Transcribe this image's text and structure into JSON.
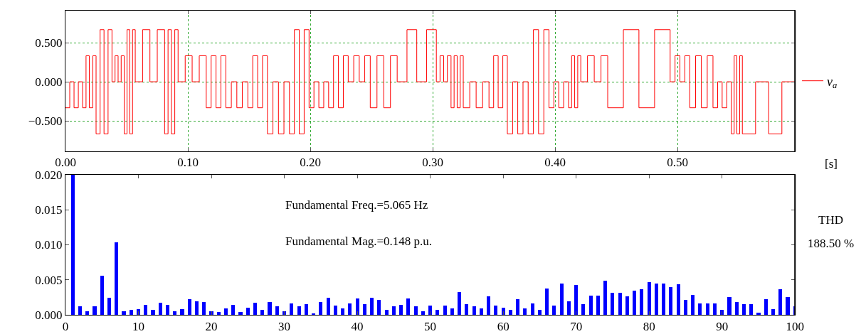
{
  "chart_data": [
    {
      "type": "step",
      "xlabel": "[s]",
      "legend": "right",
      "grid": true,
      "line_style": "solid",
      "xlim": [
        0,
        0.596
      ],
      "ylim": [
        -0.89,
        0.91
      ],
      "xticks": [
        {
          "value": 0,
          "label": "0.00"
        },
        {
          "value": 0.1,
          "label": "0.10"
        },
        {
          "value": 0.2,
          "label": "0.20"
        },
        {
          "value": 0.3,
          "label": "0.30"
        },
        {
          "value": 0.4,
          "label": "0.40"
        },
        {
          "value": 0.5,
          "label": "0.50"
        }
      ],
      "yticks": [
        {
          "value": -0.5,
          "label": "−0.500"
        },
        {
          "value": 0,
          "label": "0.000"
        },
        {
          "value": 0.5,
          "label": "0.500"
        }
      ],
      "series": [
        {
          "name": "v$_{a}$",
          "color": "#ff0000",
          "x": [
            0,
            0.0035,
            0.007,
            0.0105,
            0.014,
            0.0168,
            0.0195,
            0.0223,
            0.025,
            0.0283,
            0.0315,
            0.0348,
            0.038,
            0.0405,
            0.043,
            0.0455,
            0.048,
            0.0503,
            0.0525,
            0.0548,
            0.057,
            0.063,
            0.069,
            0.075,
            0.081,
            0.0838,
            0.0865,
            0.0893,
            0.092,
            0.0978,
            0.1035,
            0.1093,
            0.115,
            0.119,
            0.123,
            0.127,
            0.131,
            0.1355,
            0.14,
            0.1445,
            0.149,
            0.153,
            0.157,
            0.161,
            0.165,
            0.1695,
            0.174,
            0.1785,
            0.183,
            0.187,
            0.191,
            0.195,
            0.199,
            0.203,
            0.207,
            0.211,
            0.215,
            0.219,
            0.223,
            0.227,
            0.231,
            0.2355,
            0.24,
            0.2445,
            0.249,
            0.2545,
            0.26,
            0.2655,
            0.271,
            0.279,
            0.287,
            0.295,
            0.303,
            0.306,
            0.309,
            0.312,
            0.315,
            0.3175,
            0.32,
            0.3225,
            0.325,
            0.3303,
            0.3355,
            0.3408,
            0.346,
            0.3498,
            0.3535,
            0.3573,
            0.361,
            0.3653,
            0.3695,
            0.3738,
            0.378,
            0.3823,
            0.3865,
            0.3908,
            0.395,
            0.399,
            0.403,
            0.407,
            0.411,
            0.4135,
            0.416,
            0.4185,
            0.421,
            0.4265,
            0.432,
            0.4375,
            0.443,
            0.4558,
            0.4685,
            0.4813,
            0.494,
            0.498,
            0.502,
            0.506,
            0.51,
            0.5148,
            0.5195,
            0.5243,
            0.529,
            0.5328,
            0.5365,
            0.5403,
            0.544,
            0.5463,
            0.5485,
            0.5508,
            0.553,
            0.5638,
            0.5745,
            0.5853,
            0.596
          ],
          "values": [
            -0.333,
            0,
            -0.333,
            0,
            -0.333,
            0.333,
            -0.333,
            0.333,
            -0.667,
            0.667,
            -0.667,
            0.667,
            0,
            0.333,
            0,
            0.333,
            -0.667,
            0.667,
            -0.667,
            0.667,
            0,
            0.667,
            0,
            0.667,
            -0.667,
            0.667,
            -0.667,
            0.667,
            0,
            0.333,
            0,
            0.333,
            -0.333,
            0.333,
            -0.333,
            0.333,
            -0.333,
            0,
            -0.333,
            0,
            -0.333,
            0.333,
            -0.333,
            0.333,
            -0.667,
            0,
            -0.667,
            0,
            -0.667,
            0.667,
            -0.667,
            0.667,
            -0.333,
            0,
            -0.333,
            0,
            -0.333,
            0.333,
            -0.333,
            0.333,
            0,
            0.333,
            0,
            0.333,
            -0.333,
            0.333,
            -0.333,
            0.333,
            0,
            0.667,
            0,
            0.667,
            0,
            0.333,
            0,
            0.333,
            -0.333,
            0.333,
            -0.333,
            0.333,
            -0.333,
            0,
            -0.333,
            0,
            -0.333,
            0.333,
            -0.333,
            0.333,
            -0.667,
            0,
            -0.667,
            0,
            -0.667,
            0.667,
            -0.667,
            0.667,
            -0.333,
            0,
            -0.333,
            0,
            -0.333,
            0.333,
            -0.333,
            0.333,
            0,
            0.333,
            0,
            0.333,
            -0.333,
            0.667,
            -0.333,
            0.667,
            0,
            0.333,
            0,
            0.333,
            -0.333,
            0.333,
            -0.333,
            0.333,
            -0.333,
            0,
            -0.333,
            0,
            -0.667,
            0.333,
            -0.667,
            0.333,
            -0.667,
            0,
            -0.667,
            0,
            0
          ]
        }
      ]
    },
    {
      "type": "bar",
      "annotations": [
        "Fundamental Freq.=5.065 Hz",
        "Fundamental Mag.=0.148 p.u.",
        "THD",
        "188.50 %"
      ],
      "xlim": [
        0,
        100
      ],
      "ylim": [
        0,
        0.02
      ],
      "xticks": [
        0,
        10,
        20,
        30,
        40,
        50,
        60,
        70,
        80,
        90,
        100
      ],
      "yticks": [
        {
          "value": 0,
          "label": "0.000"
        },
        {
          "value": 0.005,
          "label": "0.005"
        },
        {
          "value": 0.01,
          "label": "0.010"
        },
        {
          "value": 0.015,
          "label": "0.015"
        },
        {
          "value": 0.02,
          "label": "0.020"
        }
      ],
      "series": [
        {
          "color": "#0000ff",
          "x": [
            1,
            2,
            3,
            4,
            5,
            6,
            7,
            8,
            9,
            10,
            11,
            12,
            13,
            14,
            15,
            16,
            17,
            18,
            19,
            20,
            21,
            22,
            23,
            24,
            25,
            26,
            27,
            28,
            29,
            30,
            31,
            32,
            33,
            34,
            35,
            36,
            37,
            38,
            39,
            40,
            41,
            42,
            43,
            44,
            45,
            46,
            47,
            48,
            49,
            50,
            51,
            52,
            53,
            54,
            55,
            56,
            57,
            58,
            59,
            60,
            61,
            62,
            63,
            64,
            65,
            66,
            67,
            68,
            69,
            70,
            71,
            72,
            73,
            74,
            75,
            76,
            77,
            78,
            79,
            80,
            81,
            82,
            83,
            84,
            85,
            86,
            87,
            88,
            89,
            90,
            91,
            92,
            93,
            94,
            95,
            96,
            97,
            98,
            99,
            100
          ],
          "values": [
            0.02,
            0.00125,
            0.0005,
            0.00125,
            0.0056,
            0.0025,
            0.0104,
            0.00055,
            0.0007,
            0.0009,
            0.00145,
            0.0007,
            0.0018,
            0.00145,
            0.00055,
            0.0009,
            0.0023,
            0.002,
            0.0019,
            0.00055,
            0.00045,
            0.001,
            0.0015,
            0.0004,
            0.0011,
            0.0018,
            0.0007,
            0.0019,
            0.00125,
            0.00055,
            0.0017,
            0.00125,
            0.0016,
            0.0002,
            0.0019,
            0.0025,
            0.00135,
            0.00095,
            0.00165,
            0.0024,
            0.00155,
            0.00245,
            0.00215,
            0.0008,
            0.00125,
            0.0015,
            0.0024,
            0.00125,
            0.0005,
            0.0014,
            0.0007,
            0.0014,
            0.00095,
            0.0033,
            0.0016,
            0.0013,
            0.00095,
            0.0027,
            0.0014,
            0.0011,
            0.0008,
            0.0023,
            0.00095,
            0.0017,
            0.0007,
            0.0038,
            0.00135,
            0.0045,
            0.002,
            0.0043,
            0.0016,
            0.0028,
            0.0028,
            0.0049,
            0.0032,
            0.0032,
            0.0027,
            0.0035,
            0.0037,
            0.0047,
            0.0045,
            0.0045,
            0.004,
            0.0044,
            0.0022,
            0.0029,
            0.0017,
            0.0017,
            0.0017,
            0.0007,
            0.0026,
            0.0019,
            0.0016,
            0.0016,
            0.0003,
            0.0023,
            0.00085,
            0.0037,
            0.0026,
            0.0013
          ]
        }
      ]
    }
  ]
}
